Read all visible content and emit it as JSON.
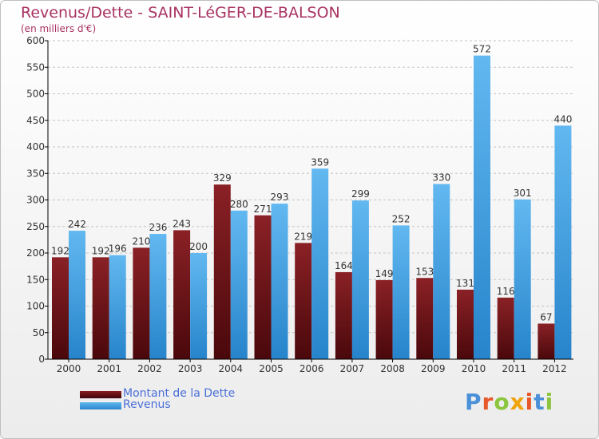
{
  "chart_data": {
    "type": "bar",
    "title": "Revenus/Dette - SAINT-LéGER-DE-BALSON",
    "subtitle": "(en milliers d'€)",
    "categories": [
      "2000",
      "2001",
      "2002",
      "2003",
      "2004",
      "2005",
      "2006",
      "2007",
      "2008",
      "2009",
      "2010",
      "2011",
      "2012"
    ],
    "series": [
      {
        "name": "Montant de la Dette",
        "values": [
          192,
          192,
          210,
          243,
          329,
          271,
          219,
          164,
          149,
          153,
          131,
          116,
          67
        ]
      },
      {
        "name": "Revenus",
        "values": [
          242,
          196,
          236,
          200,
          280,
          293,
          359,
          299,
          252,
          330,
          572,
          301,
          440
        ]
      }
    ],
    "ylim": [
      0,
      600
    ],
    "yticks": [
      0,
      50,
      100,
      150,
      200,
      250,
      300,
      350,
      400,
      450,
      500,
      550,
      600
    ],
    "xlabel": "",
    "ylabel": "",
    "grid": true,
    "legend": "bottom-left"
  },
  "colors": {
    "dette": "#7a1418",
    "revenus": "#3a9ee3",
    "title": "#a83262"
  },
  "logo": {
    "text": "Proxiti",
    "letter_colors": [
      "#4a90d9",
      "#e8572a",
      "#8cc63f",
      "#f0a30a",
      "#e8572a",
      "#4a90d9",
      "#8cc63f"
    ]
  }
}
